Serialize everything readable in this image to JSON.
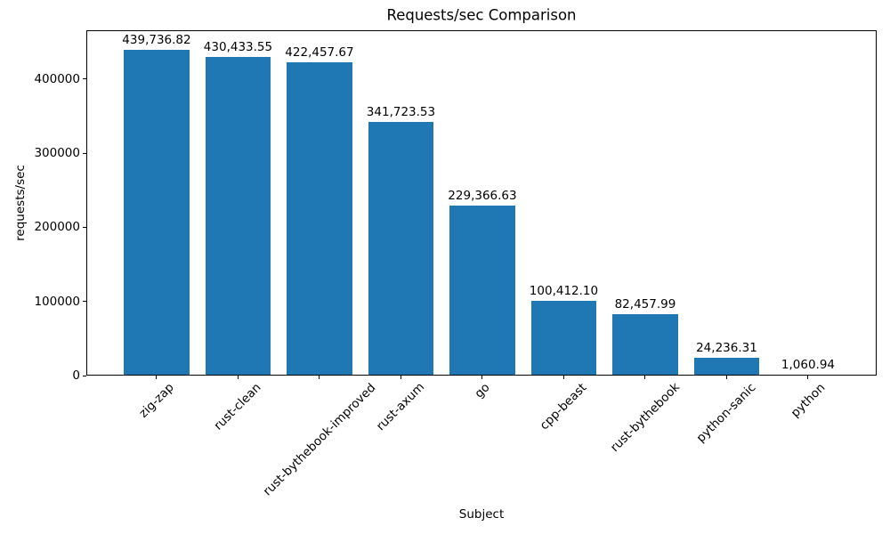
{
  "chart_data": {
    "type": "bar",
    "title": "Requests/sec Comparison",
    "xlabel": "Subject",
    "ylabel": "requests/sec",
    "categories": [
      "zig-zap",
      "rust-clean",
      "rust-bythebook-improved",
      "rust-axum",
      "go",
      "cpp-beast",
      "rust-bythebook",
      "python-sanic",
      "python"
    ],
    "values": [
      439736.82,
      430433.55,
      422457.67,
      341723.53,
      229366.63,
      100412.1,
      82457.99,
      24236.31,
      1060.94
    ],
    "value_labels": [
      "439,736.82",
      "430,433.55",
      "422,457.67",
      "341,723.53",
      "229,366.63",
      "100,412.10",
      "82,457.99",
      "24,236.31",
      "1,060.94"
    ],
    "yticks": [
      0,
      100000,
      200000,
      300000,
      400000
    ],
    "ytick_labels": [
      "0",
      "100000",
      "200000",
      "300000",
      "400000"
    ],
    "ylim": [
      0,
      466000
    ],
    "xtick_rotation_deg": 45,
    "grid": false,
    "legend": "none",
    "bar_color": "#1f77b4",
    "axis_color": "#000000",
    "background_color": "#ffffff"
  }
}
